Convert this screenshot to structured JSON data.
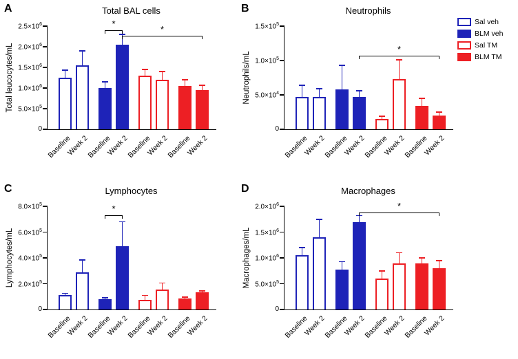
{
  "colors": {
    "blue": "#1e23b8",
    "red": "#ed1f24",
    "axis": "#000000",
    "background": "#ffffff"
  },
  "group_styles": {
    "Sal veh": {
      "fill": "#ffffff",
      "stroke": "#1e23b8"
    },
    "BLM veh": {
      "fill": "#1e23b8",
      "stroke": "#1e23b8"
    },
    "Sal TM": {
      "fill": "#ffffff",
      "stroke": "#ed1f24"
    },
    "BLM TM": {
      "fill": "#ed1f24",
      "stroke": "#ed1f24"
    }
  },
  "legend": {
    "items": [
      {
        "label": "Sal veh",
        "fill": "#ffffff",
        "stroke": "#1e23b8"
      },
      {
        "label": "BLM veh",
        "fill": "#1e23b8",
        "stroke": "#1e23b8"
      },
      {
        "label": "Sal TM",
        "fill": "#ffffff",
        "stroke": "#ed1f24"
      },
      {
        "label": "BLM TM",
        "fill": "#ed1f24",
        "stroke": "#ed1f24"
      }
    ]
  },
  "chart_data": [
    {
      "type": "bar",
      "panel": "A",
      "title": "Total BAL cells",
      "ylabel": "Total leucocytes/mL",
      "xlabel": "",
      "ylim": [
        0,
        2500000
      ],
      "grid": false,
      "legend_position": "top-right-outside",
      "yticks": [
        {
          "value": 0,
          "base": "0",
          "exp": ""
        },
        {
          "value": 500000,
          "base": "5.0×10",
          "exp": "5"
        },
        {
          "value": 1000000,
          "base": "1.0×10",
          "exp": "6"
        },
        {
          "value": 1500000,
          "base": "1.5×10",
          "exp": "6"
        },
        {
          "value": 2000000,
          "base": "2.0×10",
          "exp": "6"
        },
        {
          "value": 2500000,
          "base": "2.5×10",
          "exp": "6"
        }
      ],
      "bars": [
        {
          "group": "Sal veh",
          "x": "Baseline",
          "value": 1250000,
          "error": 180000
        },
        {
          "group": "Sal veh",
          "x": "Week 2",
          "value": 1550000,
          "error": 350000
        },
        {
          "group": "BLM veh",
          "x": "Baseline",
          "value": 1000000,
          "error": 150000
        },
        {
          "group": "BLM veh",
          "x": "Week 2",
          "value": 2050000,
          "error": 250000
        },
        {
          "group": "Sal TM",
          "x": "Baseline",
          "value": 1300000,
          "error": 150000
        },
        {
          "group": "Sal TM",
          "x": "Week 2",
          "value": 1200000,
          "error": 200000
        },
        {
          "group": "BLM TM",
          "x": "Baseline",
          "value": 1050000,
          "error": 150000
        },
        {
          "group": "BLM TM",
          "x": "Week 2",
          "value": 950000,
          "error": 120000
        }
      ],
      "significance": [
        {
          "from": 2,
          "to": 3,
          "y": 2400000,
          "label": "*"
        },
        {
          "from": 3,
          "to": 7,
          "y": 2270000,
          "label": "*"
        }
      ]
    },
    {
      "type": "bar",
      "panel": "B",
      "title": "Neutrophils",
      "ylabel": "Neutrophils/mL",
      "xlabel": "",
      "ylim": [
        0,
        150000
      ],
      "grid": false,
      "yticks": [
        {
          "value": 0,
          "base": "0",
          "exp": ""
        },
        {
          "value": 50000,
          "base": "5.0×10",
          "exp": "4"
        },
        {
          "value": 100000,
          "base": "1.0×10",
          "exp": "5"
        },
        {
          "value": 150000,
          "base": "1.5×10",
          "exp": "5"
        }
      ],
      "bars": [
        {
          "group": "Sal veh",
          "x": "Baseline",
          "value": 47000,
          "error": 17000
        },
        {
          "group": "Sal veh",
          "x": "Week 2",
          "value": 47000,
          "error": 12000
        },
        {
          "group": "BLM veh",
          "x": "Baseline",
          "value": 58000,
          "error": 35000
        },
        {
          "group": "BLM veh",
          "x": "Week 2",
          "value": 47000,
          "error": 9000
        },
        {
          "group": "Sal TM",
          "x": "Baseline",
          "value": 15000,
          "error": 4000
        },
        {
          "group": "Sal TM",
          "x": "Week 2",
          "value": 73000,
          "error": 28000
        },
        {
          "group": "BLM TM",
          "x": "Baseline",
          "value": 34000,
          "error": 11000
        },
        {
          "group": "BLM TM",
          "x": "Week 2",
          "value": 20000,
          "error": 5000
        }
      ],
      "significance": [
        {
          "from": 3,
          "to": 7,
          "y": 107000,
          "label": "*"
        }
      ]
    },
    {
      "type": "bar",
      "panel": "C",
      "title": "Lymphocytes",
      "ylabel": "Lymphocytes/mL",
      "xlabel": "",
      "ylim": [
        0,
        800000
      ],
      "grid": false,
      "yticks": [
        {
          "value": 0,
          "base": "0",
          "exp": ""
        },
        {
          "value": 200000,
          "base": "2.0×10",
          "exp": "5"
        },
        {
          "value": 400000,
          "base": "4.0×10",
          "exp": "5"
        },
        {
          "value": 600000,
          "base": "6.0×10",
          "exp": "5"
        },
        {
          "value": 800000,
          "base": "8.0×10",
          "exp": "5"
        }
      ],
      "bars": [
        {
          "group": "Sal veh",
          "x": "Baseline",
          "value": 110000,
          "error": 15000
        },
        {
          "group": "Sal veh",
          "x": "Week 2",
          "value": 290000,
          "error": 95000
        },
        {
          "group": "BLM veh",
          "x": "Baseline",
          "value": 80000,
          "error": 10000
        },
        {
          "group": "BLM veh",
          "x": "Week 2",
          "value": 490000,
          "error": 190000
        },
        {
          "group": "Sal TM",
          "x": "Baseline",
          "value": 75000,
          "error": 35000
        },
        {
          "group": "Sal TM",
          "x": "Week 2",
          "value": 155000,
          "error": 50000
        },
        {
          "group": "BLM TM",
          "x": "Baseline",
          "value": 85000,
          "error": 10000
        },
        {
          "group": "BLM TM",
          "x": "Week 2",
          "value": 135000,
          "error": 8000
        }
      ],
      "significance": [
        {
          "from": 2,
          "to": 3,
          "y": 730000,
          "label": "*"
        }
      ]
    },
    {
      "type": "bar",
      "panel": "D",
      "title": "Macrophages",
      "ylabel": "Macrophages/mL",
      "xlabel": "",
      "ylim": [
        0,
        2000000
      ],
      "grid": false,
      "yticks": [
        {
          "value": 0,
          "base": "0",
          "exp": ""
        },
        {
          "value": 500000,
          "base": "5.0×10",
          "exp": "5"
        },
        {
          "value": 1000000,
          "base": "1.0×10",
          "exp": "6"
        },
        {
          "value": 1500000,
          "base": "1.5×10",
          "exp": "6"
        },
        {
          "value": 2000000,
          "base": "2.0×10",
          "exp": "6"
        }
      ],
      "bars": [
        {
          "group": "Sal veh",
          "x": "Baseline",
          "value": 1050000,
          "error": 150000
        },
        {
          "group": "Sal veh",
          "x": "Week 2",
          "value": 1400000,
          "error": 350000
        },
        {
          "group": "BLM veh",
          "x": "Baseline",
          "value": 780000,
          "error": 150000
        },
        {
          "group": "BLM veh",
          "x": "Week 2",
          "value": 1700000,
          "error": 120000
        },
        {
          "group": "Sal TM",
          "x": "Baseline",
          "value": 600000,
          "error": 150000
        },
        {
          "group": "Sal TM",
          "x": "Week 2",
          "value": 900000,
          "error": 200000
        },
        {
          "group": "BLM TM",
          "x": "Baseline",
          "value": 900000,
          "error": 100000
        },
        {
          "group": "BLM TM",
          "x": "Week 2",
          "value": 800000,
          "error": 150000
        }
      ],
      "significance": [
        {
          "from": 3,
          "to": 7,
          "y": 1880000,
          "label": "*"
        }
      ]
    }
  ]
}
